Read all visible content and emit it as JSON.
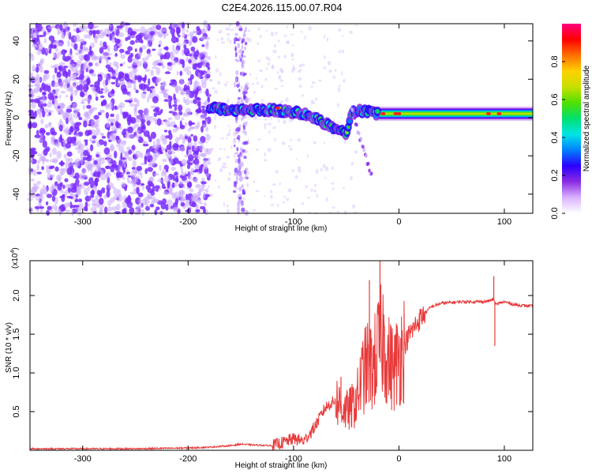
{
  "title": "C2E4.2026.115.00.07.R04",
  "colors": {
    "snr_line": "#e83a3a",
    "spec_dots": "#7a2cff",
    "spec_light": "#c8a8ff",
    "axis": "#000000"
  },
  "chart_data": [
    {
      "type": "heatmap",
      "name": "spectrogram",
      "xlabel": "Height of straight line (km)",
      "ylabel": "Frequency (Hz)",
      "xlim": [
        -350,
        127
      ],
      "ylim": [
        -50,
        49
      ],
      "xticks": [
        -300,
        -200,
        -100,
        0,
        100
      ],
      "xtick_labels": [
        "-300",
        "-200",
        "-100",
        "0",
        "100"
      ],
      "yticks": [
        -40,
        -20,
        0,
        20,
        40
      ],
      "ytick_labels": [
        "-40",
        "-20",
        "0",
        "20",
        "40"
      ],
      "colorbar": {
        "label": "Normalized spectral amplitude",
        "range": [
          0,
          1
        ],
        "ticks": [
          0.0,
          0.2,
          0.4,
          0.6,
          0.8
        ],
        "tick_labels": [
          "0.0",
          "0.2",
          "0.4",
          "0.6",
          "0.8"
        ],
        "stops": [
          "#ffffff",
          "#d9b3ff",
          "#8a2be2",
          "#2a00ff",
          "#0080ff",
          "#00e5e5",
          "#00e070",
          "#50e000",
          "#c8e000",
          "#ffd000",
          "#ff7000",
          "#ff0000",
          "#ff0080"
        ]
      },
      "signal_path": {
        "x": [
          -180,
          -160,
          -140,
          -120,
          -100,
          -85,
          -70,
          -60,
          -50,
          -45,
          -40,
          -30,
          -20,
          0,
          50,
          90,
          127
        ],
        "y": [
          5,
          4,
          4,
          4,
          3,
          1,
          -3,
          -6,
          -8,
          2,
          4,
          3,
          2,
          2,
          2,
          2,
          2
        ]
      },
      "features": [
        {
          "x_range": [
            -350,
            -180
          ],
          "description": "broadband noise"
        },
        {
          "x_range": [
            -155,
            -145
          ],
          "description": "noise band"
        },
        {
          "x_range": [
            -180,
            127
          ],
          "description": "main signal near 0 Hz"
        }
      ]
    },
    {
      "type": "line",
      "name": "snr",
      "xlabel": "Height of straight line (km)",
      "ylabel": "SNR (10 * v/v)",
      "exponent_label": "(x10",
      "exponent_power": "4",
      "exponent_close": ")",
      "xlim": [
        -350,
        127
      ],
      "ylim": [
        0,
        2.45
      ],
      "xticks": [
        -300,
        -200,
        -100,
        0,
        100
      ],
      "xtick_labels": [
        "-300",
        "-200",
        "-100",
        "0",
        "100"
      ],
      "yticks": [
        0.5,
        1.0,
        1.5,
        2.0
      ],
      "ytick_labels": [
        "0.5",
        "1.0",
        "1.5",
        "2.0"
      ],
      "series": [
        {
          "name": "SNR",
          "x": [
            -350,
            -300,
            -250,
            -200,
            -180,
            -160,
            -150,
            -140,
            -120,
            -110,
            -100,
            -90,
            -80,
            -70,
            -60,
            -50,
            -45,
            -40,
            -35,
            -30,
            -25,
            -20,
            -15,
            -10,
            -5,
            0,
            5,
            10,
            20,
            30,
            40,
            60,
            80,
            85,
            90,
            92,
            95,
            100,
            110,
            127
          ],
          "y": [
            0.02,
            0.02,
            0.02,
            0.03,
            0.04,
            0.06,
            0.08,
            0.07,
            0.06,
            0.1,
            0.15,
            0.12,
            0.3,
            0.55,
            0.65,
            0.5,
            0.55,
            0.65,
            0.95,
            1.1,
            1.05,
            1.3,
            1.45,
            1.15,
            1.05,
            1.2,
            1.35,
            1.5,
            1.7,
            1.85,
            1.9,
            1.92,
            1.92,
            1.93,
            1.95,
            1.88,
            1.9,
            1.92,
            1.88,
            1.86
          ]
        }
      ],
      "spikes": [
        {
          "x": -18,
          "y": 2.45
        },
        {
          "x": -28,
          "y": 2.2
        },
        {
          "x": -55,
          "y": 0.95
        },
        {
          "x": 90,
          "y": 2.25
        },
        {
          "x": 91,
          "y": 1.35
        }
      ]
    }
  ]
}
